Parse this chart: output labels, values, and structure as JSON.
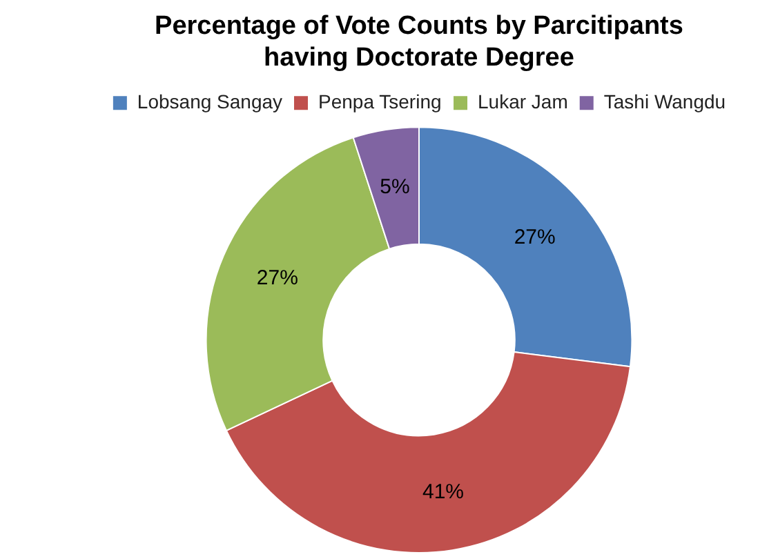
{
  "chart_data": {
    "type": "donut",
    "title": "Percentage of Vote Counts by Parcitipants having Doctorate Degree",
    "categories": [
      "Lobsang Sangay",
      "Penpa Tsering",
      "Lukar Jam",
      "Tashi Wangdu"
    ],
    "values": [
      27,
      41,
      27,
      5
    ],
    "colors": [
      "#4f81bd",
      "#c0504d",
      "#9bbb59",
      "#8064a2"
    ],
    "value_labels": [
      "27%",
      "41%",
      "27%",
      "5%"
    ],
    "legend": "top"
  }
}
